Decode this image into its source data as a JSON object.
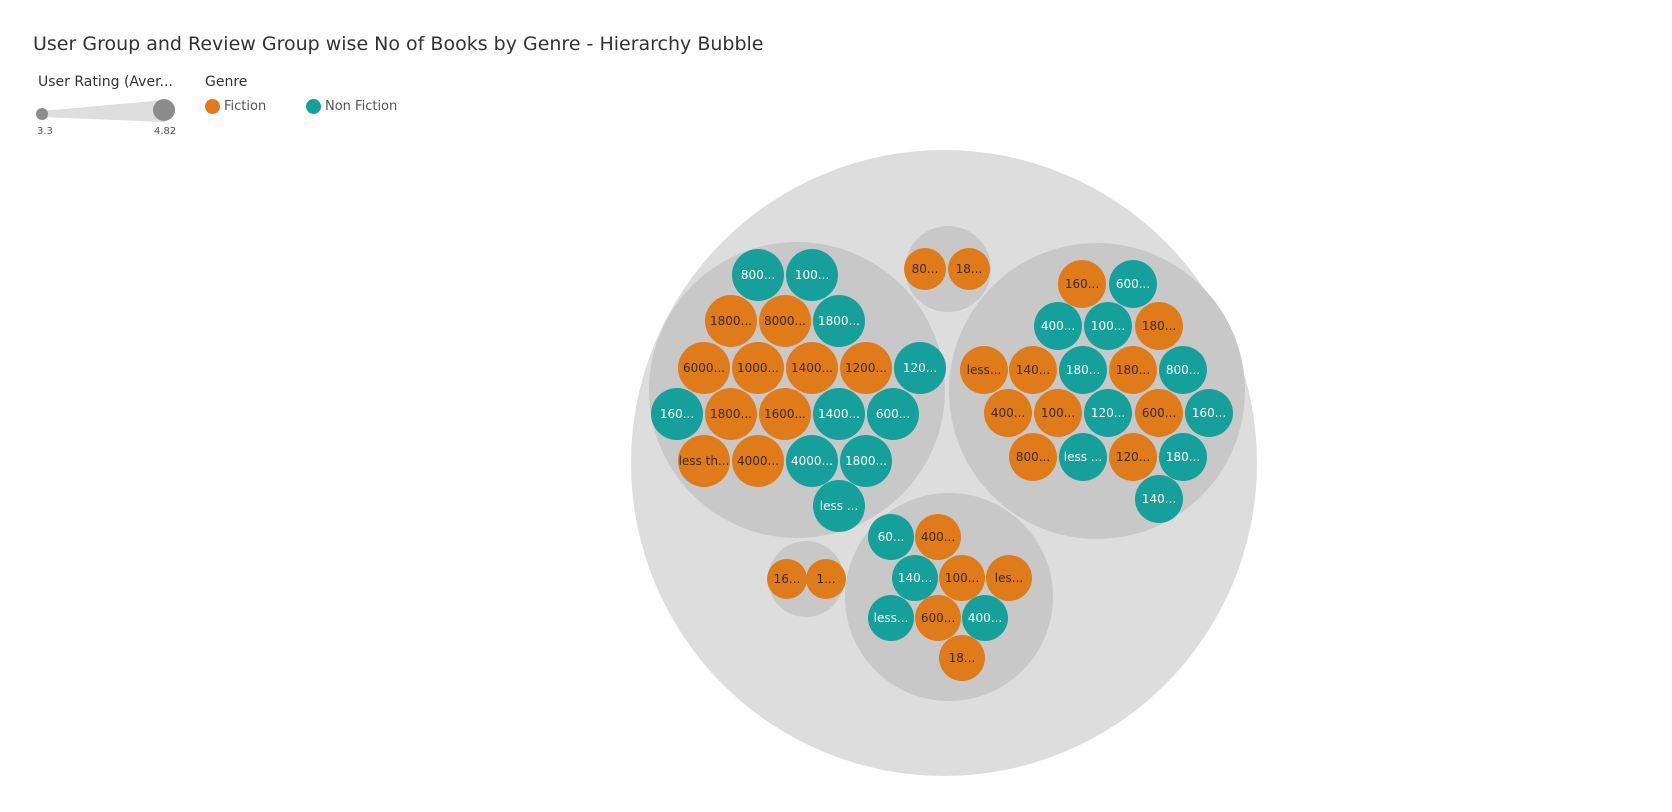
{
  "title": "User Group and Review Group wise No of Books by Genre - Hierarchy Bubble",
  "legend": {
    "size_title": "User Rating (Aver...",
    "size_min": "3.3",
    "size_max": "4.82",
    "genre_title": "Genre",
    "genres": [
      {
        "name": "Fiction",
        "color": "#e07b1a"
      },
      {
        "name": "Non Fiction",
        "color": "#15a09c"
      }
    ]
  },
  "colors": {
    "outer": "#dddddd",
    "group": "#c8c8c8",
    "fiction": "#e07b1a",
    "nonfiction": "#15a09c",
    "fiction_text": "#3a2a1a",
    "nonfiction_text": "#ffffff"
  },
  "chart_data": {
    "type": "hierarchy-bubble",
    "size_measure": "User Rating (Aver...",
    "size_range": [
      3.3,
      4.82
    ],
    "color_measure": "Genre",
    "groups": [
      {
        "bubbles": [
          {
            "label": "800...",
            "genre": "Non Fiction"
          },
          {
            "label": "100...",
            "genre": "Non Fiction"
          },
          {
            "label": "1800...",
            "genre": "Fiction"
          },
          {
            "label": "8000...",
            "genre": "Fiction"
          },
          {
            "label": "1800...",
            "genre": "Non Fiction"
          },
          {
            "label": "6000...",
            "genre": "Fiction"
          },
          {
            "label": "1000...",
            "genre": "Fiction"
          },
          {
            "label": "1400...",
            "genre": "Fiction"
          },
          {
            "label": "1200...",
            "genre": "Fiction"
          },
          {
            "label": "120...",
            "genre": "Non Fiction"
          },
          {
            "label": "160...",
            "genre": "Non Fiction"
          },
          {
            "label": "1800...",
            "genre": "Fiction"
          },
          {
            "label": "1600...",
            "genre": "Fiction"
          },
          {
            "label": "1400...",
            "genre": "Non Fiction"
          },
          {
            "label": "600...",
            "genre": "Non Fiction"
          },
          {
            "label": "less th...",
            "genre": "Fiction"
          },
          {
            "label": "4000...",
            "genre": "Fiction"
          },
          {
            "label": "4000...",
            "genre": "Non Fiction"
          },
          {
            "label": "1800...",
            "genre": "Non Fiction"
          },
          {
            "label": "less ...",
            "genre": "Non Fiction"
          }
        ]
      },
      {
        "bubbles": [
          {
            "label": "80...",
            "genre": "Fiction"
          },
          {
            "label": "18...",
            "genre": "Fiction"
          }
        ]
      },
      {
        "bubbles": [
          {
            "label": "160...",
            "genre": "Fiction"
          },
          {
            "label": "600...",
            "genre": "Non Fiction"
          },
          {
            "label": "400...",
            "genre": "Non Fiction"
          },
          {
            "label": "100...",
            "genre": "Non Fiction"
          },
          {
            "label": "180...",
            "genre": "Fiction"
          },
          {
            "label": "less...",
            "genre": "Fiction"
          },
          {
            "label": "140...",
            "genre": "Fiction"
          },
          {
            "label": "180...",
            "genre": "Non Fiction"
          },
          {
            "label": "180...",
            "genre": "Fiction"
          },
          {
            "label": "800...",
            "genre": "Non Fiction"
          },
          {
            "label": "400...",
            "genre": "Fiction"
          },
          {
            "label": "100...",
            "genre": "Fiction"
          },
          {
            "label": "120...",
            "genre": "Non Fiction"
          },
          {
            "label": "600...",
            "genre": "Fiction"
          },
          {
            "label": "160...",
            "genre": "Non Fiction"
          },
          {
            "label": "800...",
            "genre": "Fiction"
          },
          {
            "label": "less ...",
            "genre": "Non Fiction"
          },
          {
            "label": "120...",
            "genre": "Fiction"
          },
          {
            "label": "180...",
            "genre": "Non Fiction"
          },
          {
            "label": "140...",
            "genre": "Non Fiction"
          }
        ]
      },
      {
        "bubbles": [
          {
            "label": "16...",
            "genre": "Fiction"
          },
          {
            "label": "1...",
            "genre": "Fiction"
          }
        ]
      },
      {
        "bubbles": [
          {
            "label": "60...",
            "genre": "Non Fiction"
          },
          {
            "label": "400...",
            "genre": "Fiction"
          },
          {
            "label": "140...",
            "genre": "Non Fiction"
          },
          {
            "label": "100...",
            "genre": "Fiction"
          },
          {
            "label": "les...",
            "genre": "Fiction"
          },
          {
            "label": "less...",
            "genre": "Non Fiction"
          },
          {
            "label": "600...",
            "genre": "Fiction"
          },
          {
            "label": "400...",
            "genre": "Non Fiction"
          },
          {
            "label": "18...",
            "genre": "Fiction"
          }
        ]
      }
    ]
  }
}
